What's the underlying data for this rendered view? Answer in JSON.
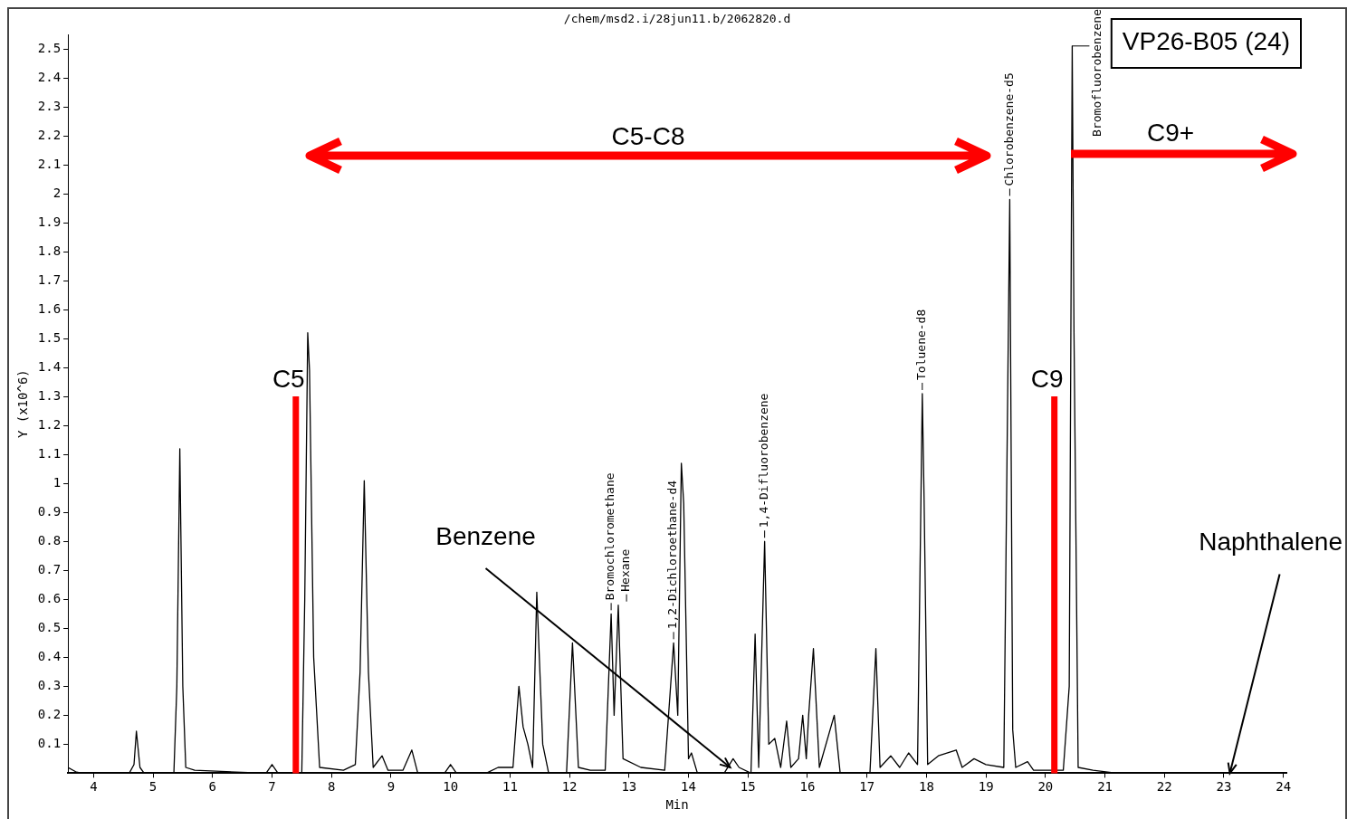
{
  "chart_data": {
    "type": "line",
    "title": "/chem/msd2.i/28jun11.b/2062820.d",
    "xlabel": "Min",
    "ylabel": "Y (x10^6)",
    "x": [
      3.57,
      3.7,
      3.8,
      4.3,
      4.6,
      4.68,
      4.72,
      4.78,
      4.85,
      5.35,
      5.4,
      5.45,
      5.5,
      5.55,
      5.7,
      6.9,
      7.0,
      7.1,
      7.5,
      7.55,
      7.6,
      7.63,
      7.7,
      7.8,
      8.2,
      8.4,
      8.48,
      8.55,
      8.62,
      8.7,
      8.85,
      8.95,
      9.2,
      9.35,
      9.45,
      9.9,
      10.0,
      10.1,
      10.6,
      10.8,
      11.05,
      11.15,
      11.22,
      11.3,
      11.38,
      11.45,
      11.55,
      11.65,
      11.95,
      12.05,
      12.15,
      12.35,
      12.6,
      12.7,
      12.75,
      12.82,
      12.9,
      13.2,
      13.6,
      13.75,
      13.82,
      13.88,
      13.92,
      14.0,
      14.05,
      14.15,
      14.6,
      14.75,
      14.85,
      15.05,
      15.12,
      15.18,
      15.28,
      15.35,
      15.45,
      15.55,
      15.65,
      15.72,
      15.85,
      15.92,
      15.98,
      16.02,
      16.1,
      16.2,
      16.45,
      16.55,
      17.05,
      17.15,
      17.22,
      17.4,
      17.55,
      17.7,
      17.85,
      17.93,
      17.96,
      18.02,
      18.2,
      18.5,
      18.6,
      18.8,
      19.0,
      19.3,
      19.37,
      19.4,
      19.45,
      19.5,
      19.7,
      19.8,
      20.3,
      20.4,
      20.45,
      20.48,
      20.55,
      20.8,
      21.2,
      24.0
    ],
    "series": [
      {
        "color": "#000000",
        "values": [
          0.02,
          0.005,
          0,
          0,
          0,
          0.03,
          0.145,
          0.02,
          0,
          0,
          0.3,
          1.12,
          0.3,
          0.02,
          0.01,
          0,
          0.03,
          0,
          0,
          0.6,
          1.52,
          1.39,
          0.4,
          0.02,
          0.01,
          0.03,
          0.35,
          1.01,
          0.35,
          0.02,
          0.06,
          0.01,
          0.01,
          0.08,
          0,
          0,
          0.03,
          0,
          0,
          0.02,
          0.02,
          0.3,
          0.16,
          0.1,
          0.02,
          0.625,
          0.1,
          0,
          0,
          0.45,
          0.02,
          0.01,
          0.01,
          0.55,
          0.2,
          0.58,
          0.05,
          0.02,
          0.01,
          0.45,
          0.2,
          1.07,
          0.93,
          0.05,
          0.07,
          0,
          0,
          0.05,
          0.02,
          0,
          0.48,
          0.02,
          0.8,
          0.1,
          0.12,
          0.02,
          0.18,
          0.02,
          0.05,
          0.2,
          0.05,
          0.2,
          0.43,
          0.02,
          0.2,
          0,
          0,
          0.43,
          0.02,
          0.06,
          0.02,
          0.07,
          0.03,
          1.31,
          0.95,
          0.03,
          0.06,
          0.08,
          0.02,
          0.05,
          0.03,
          0.02,
          1.4,
          1.98,
          0.15,
          0.02,
          0.04,
          0.01,
          0.01,
          0.3,
          2.51,
          1.52,
          0.02,
          0.01,
          0,
          0
        ],
        "name": null
      }
    ],
    "xlim": [
      3.57,
      24.05
    ],
    "ylim": [
      0,
      2.55
    ],
    "xticks": [
      4,
      5,
      6,
      7,
      8,
      9,
      10,
      11,
      12,
      13,
      14,
      15,
      16,
      17,
      18,
      19,
      20,
      21,
      22,
      23,
      24
    ],
    "yticks": [
      0.1,
      0.2,
      0.3,
      0.4,
      0.5,
      0.6,
      0.7,
      0.8,
      0.9,
      1.0,
      1.1,
      1.2,
      1.3,
      1.4,
      1.5,
      1.6,
      1.7,
      1.8,
      1.9,
      2.0,
      2.1,
      2.2,
      2.3,
      2.4,
      2.5
    ],
    "ref_lines": [
      {
        "axis": "x",
        "value": 7.4,
        "label": "C5",
        "color": "#ff0000"
      },
      {
        "axis": "x",
        "value": 20.15,
        "label": "C9",
        "color": "#ff0000"
      }
    ],
    "annotations": [
      "VP26-B05 (24)",
      "C5-C8",
      "C9+",
      {
        "text": "Benzene",
        "x": 14.7,
        "y": 0.02
      },
      {
        "text": "Naphthalene",
        "x": 23.1,
        "y": 0
      },
      {
        "text": "Bromochloromethane",
        "x": 12.7,
        "y": 0.55
      },
      {
        "text": "Hexane",
        "x": 12.82,
        "y": 0.58
      },
      {
        "text": "1,2-Dichloroethane-d4",
        "x": 13.75,
        "y": 0.45
      },
      {
        "text": "1,4-Difluorobenzene",
        "x": 15.28,
        "y": 0.8
      },
      {
        "text": "Toluene-d8",
        "x": 17.93,
        "y": 1.31
      },
      {
        "text": "Chlorobenzene-d5",
        "x": 19.4,
        "y": 1.98
      },
      {
        "text": "Bromofluorobenzene",
        "x": 20.45,
        "y": 2.51
      }
    ],
    "grid": false,
    "legend": false,
    "marker": "none",
    "line_style": "solid"
  }
}
